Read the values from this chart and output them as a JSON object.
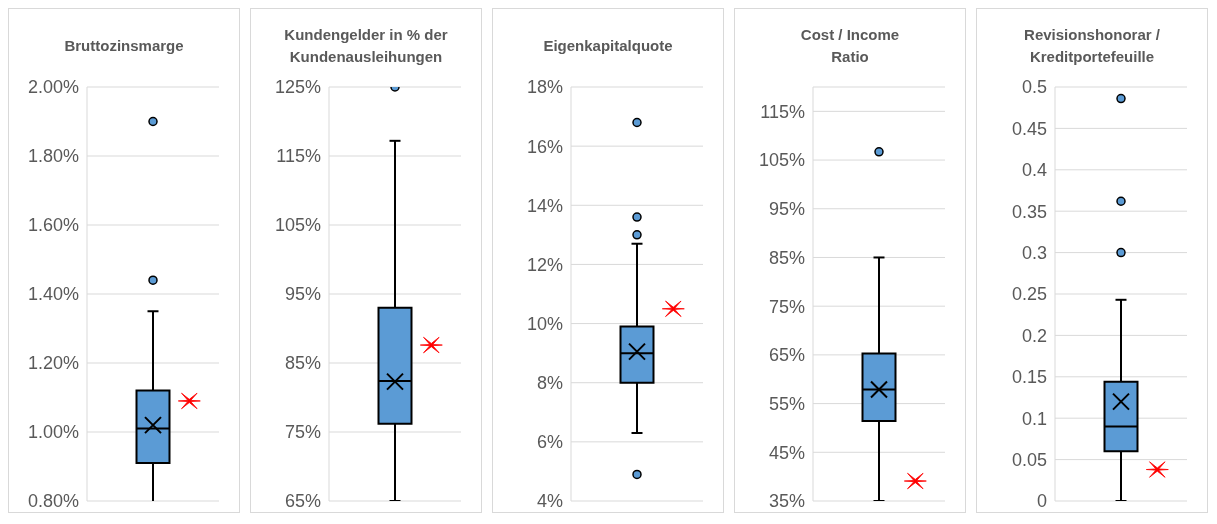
{
  "chart_data": [
    {
      "type": "box",
      "title": "Bruttozinsmarge",
      "categories": [
        null
      ],
      "grid": "y",
      "marker": "cross",
      "ylim": [
        0.8,
        2.0
      ],
      "yticks": [
        {
          "value": 0.8,
          "label": "0.80%"
        },
        {
          "value": 1.0,
          "label": "1.00%"
        },
        {
          "value": 1.2,
          "label": "1.20%"
        },
        {
          "value": 1.4,
          "label": "1.40%"
        },
        {
          "value": 1.6,
          "label": "1.60%"
        },
        {
          "value": 1.8,
          "label": "1.80%"
        },
        {
          "value": 2.0,
          "label": "2.00%"
        }
      ],
      "series": [
        {
          "color": "#5b9bd5",
          "boxes": [
            {
              "low": 0.79,
              "q1": 0.91,
              "median": 1.01,
              "q3": 1.12,
              "high": 1.35,
              "mean": 1.02,
              "outliers": [
                1.44,
                1.9
              ]
            }
          ]
        },
        {
          "type": "scatter",
          "color": "#ff0000",
          "values": [
            1.09
          ]
        }
      ]
    },
    {
      "type": "box",
      "title": "Kundengelder in % der\nKundenausleihungen",
      "categories": [
        null
      ],
      "grid": "y",
      "marker": "cross",
      "ylim": [
        65,
        125
      ],
      "yticks": [
        {
          "value": 65,
          "label": "65%"
        },
        {
          "value": 75,
          "label": "75%"
        },
        {
          "value": 85,
          "label": "85%"
        },
        {
          "value": 95,
          "label": "95%"
        },
        {
          "value": 105,
          "label": "105%"
        },
        {
          "value": 115,
          "label": "115%"
        },
        {
          "value": 125,
          "label": "125%"
        }
      ],
      "series": [
        {
          "color": "#5b9bd5",
          "boxes": [
            {
              "low": 65,
              "q1": 76.2,
              "median": 82.4,
              "q3": 93,
              "high": 117.2,
              "mean": 82.3,
              "outliers": [
                125
              ]
            }
          ]
        },
        {
          "type": "scatter",
          "color": "#ff0000",
          "values": [
            87.6
          ]
        }
      ]
    },
    {
      "type": "box",
      "title": "Eigenkapitalquote",
      "categories": [
        null
      ],
      "grid": "y",
      "marker": "cross",
      "ylim": [
        4,
        18
      ],
      "yticks": [
        {
          "value": 4,
          "label": "4%"
        },
        {
          "value": 6,
          "label": "6%"
        },
        {
          "value": 8,
          "label": "8%"
        },
        {
          "value": 10,
          "label": "10%"
        },
        {
          "value": 12,
          "label": "12%"
        },
        {
          "value": 14,
          "label": "14%"
        },
        {
          "value": 16,
          "label": "16%"
        },
        {
          "value": 18,
          "label": "18%"
        }
      ],
      "series": [
        {
          "color": "#5b9bd5",
          "boxes": [
            {
              "low": 6.3,
              "q1": 8.0,
              "median": 9.0,
              "q3": 9.9,
              "high": 12.7,
              "mean": 9.05,
              "outliers": [
                4.9,
                13.0,
                13.6,
                16.8
              ]
            }
          ]
        },
        {
          "type": "scatter",
          "color": "#ff0000",
          "values": [
            10.5
          ]
        }
      ]
    },
    {
      "type": "box",
      "title": "Cost / Income\nRatio",
      "categories": [
        null
      ],
      "grid": "y",
      "marker": "cross",
      "ylim": [
        35,
        120
      ],
      "yticks": [
        {
          "value": 35,
          "label": "35%"
        },
        {
          "value": 45,
          "label": "45%"
        },
        {
          "value": 55,
          "label": "55%"
        },
        {
          "value": 65,
          "label": "65%"
        },
        {
          "value": 75,
          "label": "75%"
        },
        {
          "value": 85,
          "label": "85%"
        },
        {
          "value": 95,
          "label": "95%"
        },
        {
          "value": 105,
          "label": "105%"
        },
        {
          "value": 115,
          "label": "115%"
        }
      ],
      "series": [
        {
          "color": "#5b9bd5",
          "boxes": [
            {
              "low": 35,
              "q1": 51.4,
              "median": 57.9,
              "q3": 65.3,
              "high": 85,
              "mean": 57.9,
              "outliers": [
                106.7
              ]
            }
          ]
        },
        {
          "type": "scatter",
          "color": "#ff0000",
          "values": [
            39.1
          ]
        }
      ]
    },
    {
      "type": "box",
      "title": "Revisionshonorar /\nKreditportefeuille",
      "categories": [
        null
      ],
      "grid": "y",
      "marker": "cross",
      "ylim": [
        0,
        0.5
      ],
      "yticks": [
        0,
        0.05,
        0.1,
        0.15,
        0.2,
        0.25,
        0.3,
        0.35,
        0.4,
        0.45,
        0.5
      ],
      "series": [
        {
          "color": "#5b9bd5",
          "boxes": [
            {
              "low": 0,
              "q1": 0.06,
              "median": 0.09,
              "q3": 0.144,
              "high": 0.243,
              "mean": 0.12,
              "outliers": [
                0.3,
                0.362,
                0.486
              ]
            }
          ]
        },
        {
          "type": "scatter",
          "color": "#ff0000",
          "values": [
            0.038
          ]
        }
      ]
    }
  ]
}
